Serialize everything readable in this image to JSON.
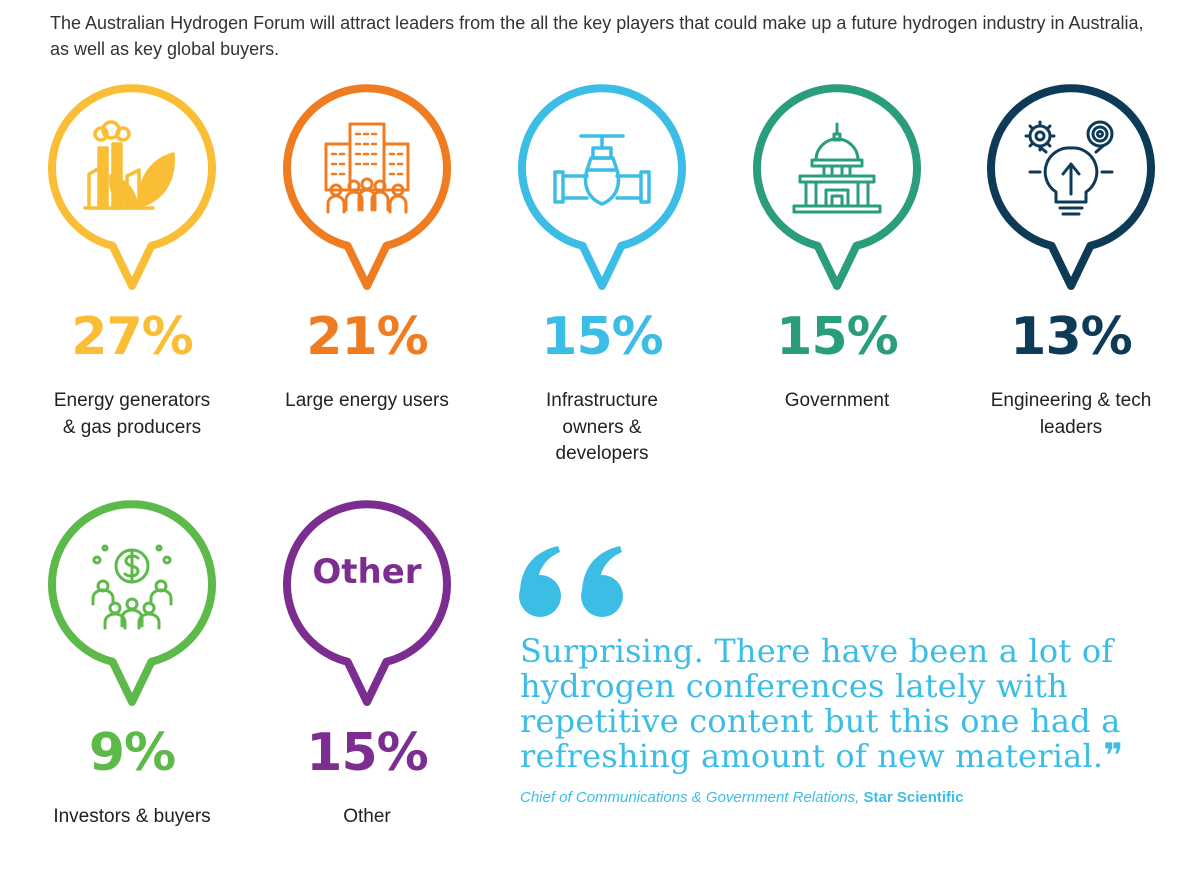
{
  "intro": "The Australian Hydrogen Forum will attract leaders from the all the key players that could make up a future hydrogen industry in Australia, as well as key global buyers.",
  "categories": [
    {
      "percent": "27%",
      "label": "Energy generators & gas producers",
      "color": "#f9be35",
      "icon": "factory-leaf-icon"
    },
    {
      "percent": "21%",
      "label": "Large energy users",
      "color": "#f07c21",
      "icon": "building-people-icon"
    },
    {
      "percent": "15%",
      "label": "Infrastructure owners & developers",
      "color": "#3bbde6",
      "icon": "pipe-valve-icon"
    },
    {
      "percent": "15%",
      "label": "Government",
      "color": "#2a9d7c",
      "icon": "capitol-building-icon"
    },
    {
      "percent": "13%",
      "label": "Engineering & tech leaders",
      "color": "#0d3b57",
      "icon": "gear-target-bulb-icon"
    },
    {
      "percent": "9%",
      "label": "Investors & buyers",
      "color": "#5db949",
      "icon": "dollar-people-icon"
    },
    {
      "percent": "15%",
      "label": "Other",
      "color": "#7b2d90",
      "icon": "other-text",
      "pin_text": "Other"
    }
  ],
  "quote": {
    "text": "Surprising. There have been a lot of hydrogen conferences lately with repetitive content but this one had a refreshing amount of new material.",
    "closing_mark": "❞",
    "attribution_role": "Chief of Communications & Government Relations,",
    "attribution_company": "Star Scientific",
    "color": "#3bbde6"
  }
}
